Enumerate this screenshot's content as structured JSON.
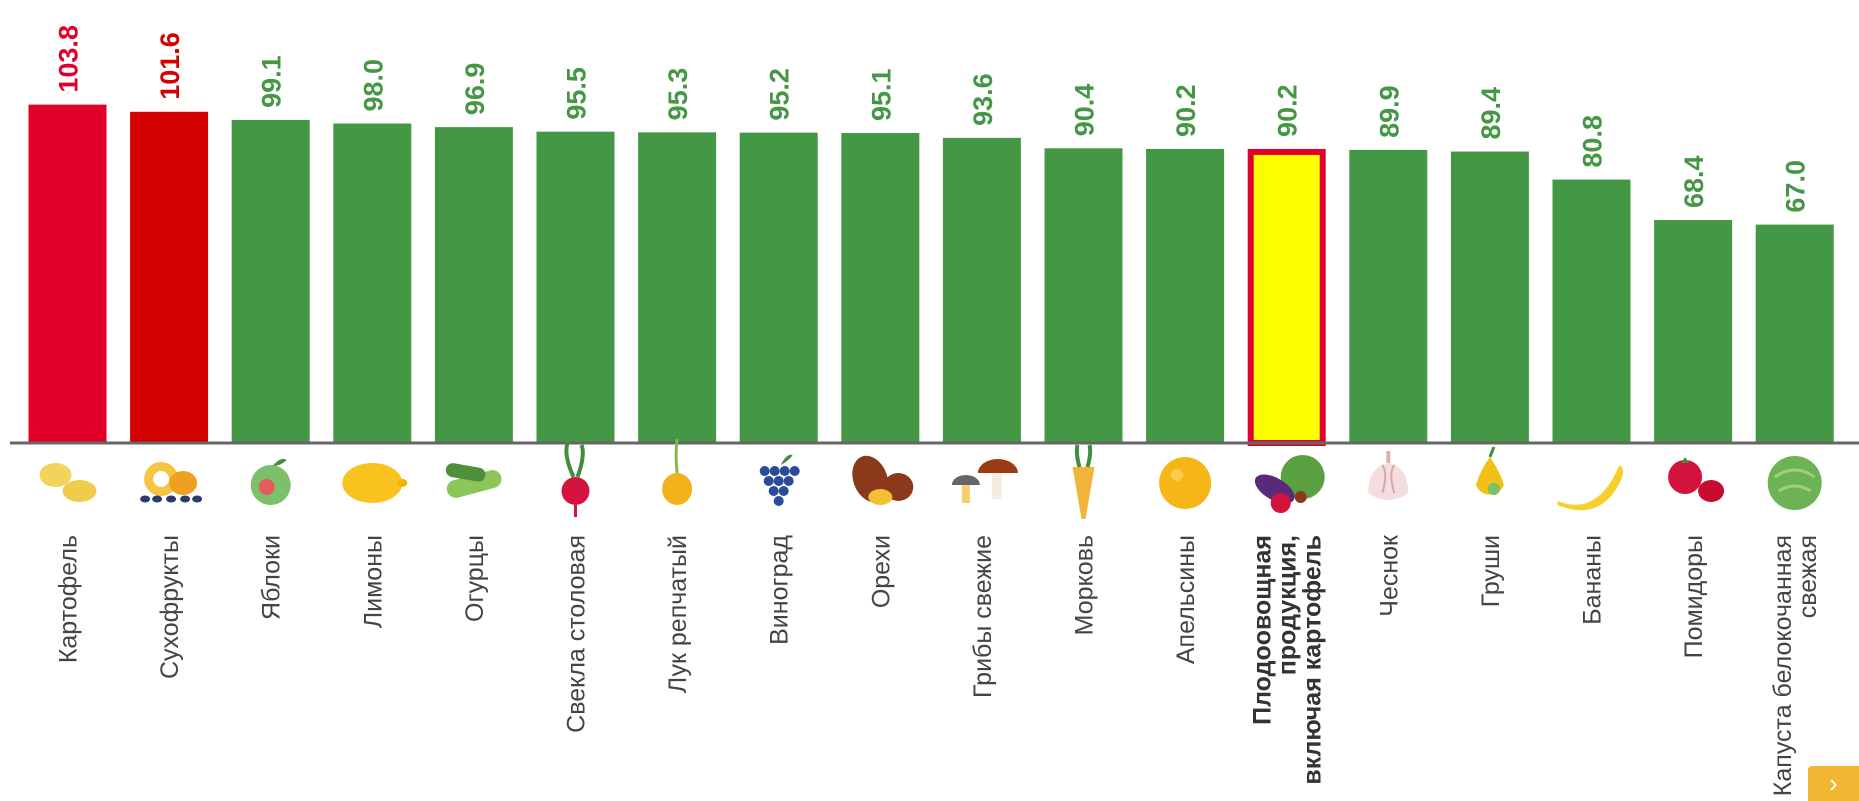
{
  "chart_data": {
    "type": "bar",
    "ylim": [
      0,
      110
    ],
    "categories": [
      {
        "label": "Картофель",
        "value": 103.8,
        "value_text": "103.8",
        "color": "#e0002a",
        "label_color": "#e0002a",
        "icon": "potato-icon"
      },
      {
        "label": "Сухофрукты",
        "value": 101.6,
        "value_text": "101.6",
        "color": "#d40000",
        "label_color": "#d40000",
        "icon": "dried-fruit-icon"
      },
      {
        "label": "Яблоки",
        "value": 99.1,
        "value_text": "99.1",
        "color": "#449744",
        "label_color": "#449744",
        "icon": "apple-icon"
      },
      {
        "label": "Лимоны",
        "value": 98.0,
        "value_text": "98.0",
        "color": "#449744",
        "label_color": "#449744",
        "icon": "lemon-icon"
      },
      {
        "label": "Огурцы",
        "value": 96.9,
        "value_text": "96.9",
        "color": "#449744",
        "label_color": "#449744",
        "icon": "cucumber-icon"
      },
      {
        "label": "Свекла столовая",
        "value": 95.5,
        "value_text": "95.5",
        "color": "#449744",
        "label_color": "#449744",
        "icon": "beet-icon"
      },
      {
        "label": "Лук  репчатый",
        "value": 95.3,
        "value_text": "95.3",
        "color": "#449744",
        "label_color": "#449744",
        "icon": "onion-icon"
      },
      {
        "label": "Виноград",
        "value": 95.2,
        "value_text": "95.2",
        "color": "#449744",
        "label_color": "#449744",
        "icon": "grapes-icon"
      },
      {
        "label": "Орехи",
        "value": 95.1,
        "value_text": "95.1",
        "color": "#449744",
        "label_color": "#449744",
        "icon": "nuts-icon"
      },
      {
        "label": "Грибы свежие",
        "value": 93.6,
        "value_text": "93.6",
        "color": "#449744",
        "label_color": "#449744",
        "icon": "mushroom-icon"
      },
      {
        "label": "Морковь",
        "value": 90.4,
        "value_text": "90.4",
        "color": "#449744",
        "label_color": "#449744",
        "icon": "carrot-icon"
      },
      {
        "label": "Апельсины",
        "value": 90.2,
        "value_text": "90.2",
        "color": "#449744",
        "label_color": "#449744",
        "icon": "orange-icon"
      },
      {
        "label": "Плодоовощная продукция, включая картофель",
        "label_lines": [
          "Плодоовощная",
          "продукция,",
          "включая картофель"
        ],
        "value": 90.2,
        "value_text": "90.2",
        "color": "#ffff00",
        "border_color": "#e0002a",
        "label_color": "#449744",
        "highlight": true,
        "icon": "vegetables-basket-icon"
      },
      {
        "label": "Чеснок",
        "value": 89.9,
        "value_text": "89.9",
        "color": "#449744",
        "label_color": "#449744",
        "icon": "garlic-icon"
      },
      {
        "label": "Груши",
        "value": 89.4,
        "value_text": "89.4",
        "color": "#449744",
        "label_color": "#449744",
        "icon": "pear-icon"
      },
      {
        "label": "Бананы",
        "value": 80.8,
        "value_text": "80.8",
        "color": "#449744",
        "label_color": "#449744",
        "icon": "banana-icon"
      },
      {
        "label": "Помидоры",
        "value": 68.4,
        "value_text": "68.4",
        "color": "#449744",
        "label_color": "#449744",
        "icon": "tomato-icon"
      },
      {
        "label": "Капуста  белокочанная свежая",
        "label_lines": [
          "Капуста  белокочанная",
          "свежая"
        ],
        "value": 67.0,
        "value_text": "67.0",
        "color": "#449744",
        "label_color": "#449744",
        "icon": "cabbage-icon"
      }
    ]
  },
  "nav": {
    "next_icon": "chevron-right-icon",
    "next_glyph": "›",
    "accent": "#f2b632"
  }
}
